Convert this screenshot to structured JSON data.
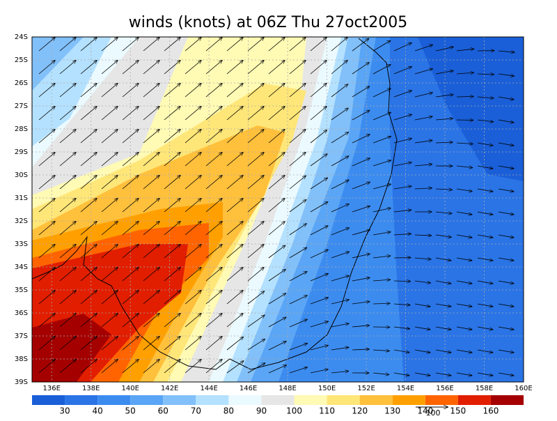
{
  "title": "winds (knots) at 06Z Thu 27oct2005",
  "lat_labels": [
    "24S",
    "25S",
    "26S",
    "27S",
    "28S",
    "29S",
    "30S",
    "31S",
    "32S",
    "33S",
    "34S",
    "35S",
    "36S",
    "37S",
    "38S",
    "39S"
  ],
  "lon_labels": [
    "136E",
    "138E",
    "140E",
    "142E",
    "144E",
    "146E",
    "148E",
    "150E",
    "152E",
    "154E",
    "156E",
    "158E",
    "160E"
  ],
  "colorbar": {
    "levels": [
      30,
      40,
      50,
      60,
      70,
      80,
      90,
      100,
      110,
      120,
      130,
      140,
      150,
      160
    ],
    "colors": [
      "#1a5fd8",
      "#2a74e6",
      "#3c8cf0",
      "#5aa5f5",
      "#82c0fa",
      "#b4e1ff",
      "#ebfaff",
      "#e6e6e6",
      "#fffab4",
      "#ffe678",
      "#ffc03c",
      "#ffa000",
      "#ff6400",
      "#e11e00",
      "#a50000"
    ]
  },
  "reference_vector": {
    "label": "100"
  }
}
